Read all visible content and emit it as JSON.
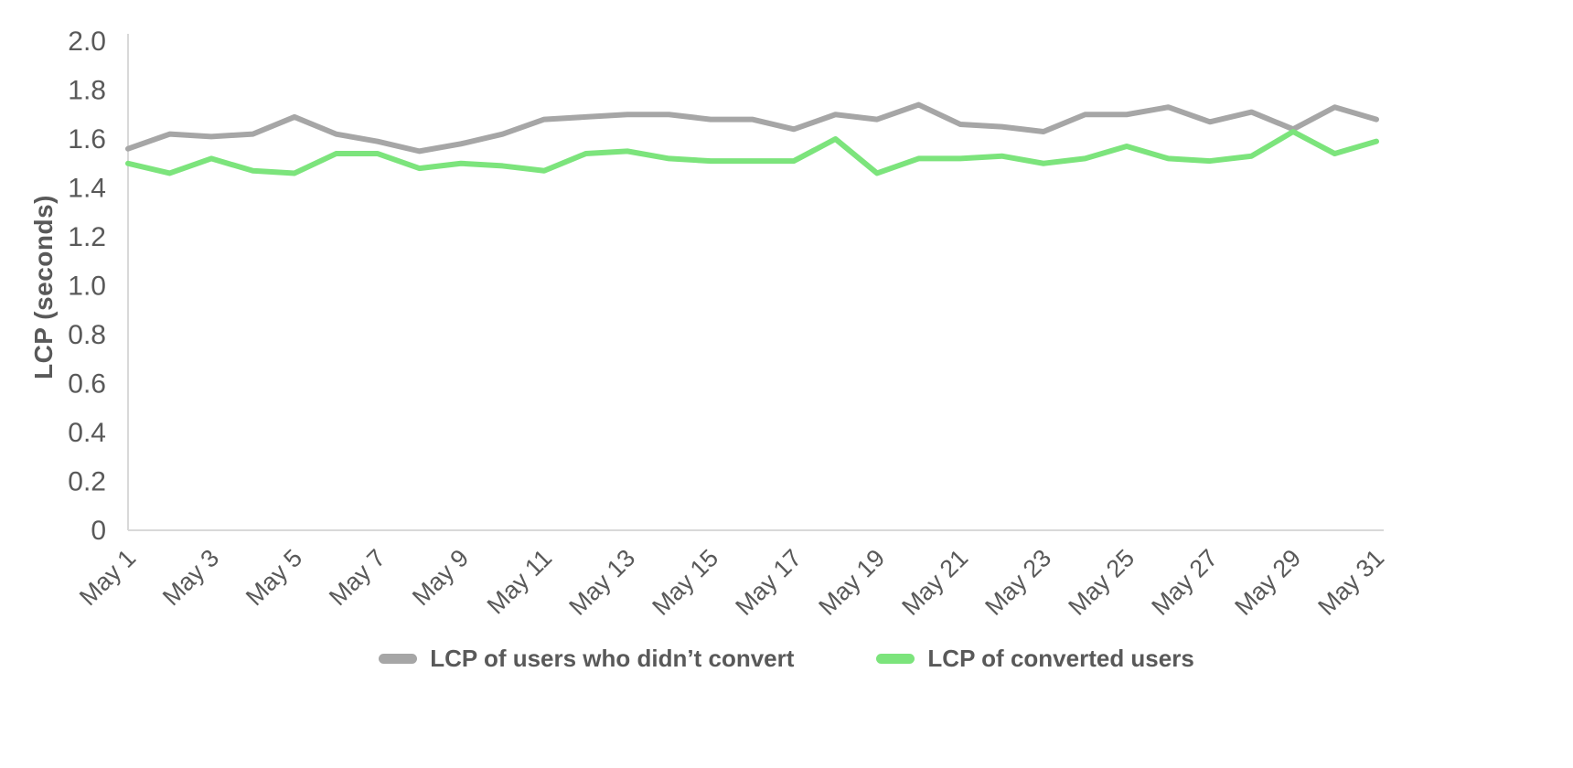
{
  "chart_data": {
    "type": "line",
    "title": "",
    "ylabel": "LCP (seconds)",
    "xlabel": "",
    "ylim": [
      0,
      2.0
    ],
    "grid": false,
    "legend_position": "bottom",
    "text_color": "#595959",
    "axis_color": "#D9D9D9",
    "x": [
      "May 1",
      "May 2",
      "May 3",
      "May 4",
      "May 5",
      "May 6",
      "May 7",
      "May 8",
      "May 9",
      "May 10",
      "May 11",
      "May 12",
      "May 13",
      "May 14",
      "May 15",
      "May 16",
      "May 17",
      "May 18",
      "May 19",
      "May 20",
      "May 21",
      "May 22",
      "May 23",
      "May 24",
      "May 25",
      "May 26",
      "May 27",
      "May 28",
      "May 29",
      "May 30",
      "May 31"
    ],
    "xtick_labels": [
      "May 1",
      "May 3",
      "May 5",
      "May 7",
      "May 9",
      "May 11",
      "May 13",
      "May 15",
      "May 17",
      "May 19",
      "May 21",
      "May 23",
      "May 25",
      "May 27",
      "May 29",
      "May 31"
    ],
    "ytick_labels": [
      "0",
      "0.2",
      "0.4",
      "0.6",
      "0.8",
      "1.0",
      "1.2",
      "1.4",
      "1.6",
      "1.8",
      "2.0"
    ],
    "series": [
      {
        "name": "LCP of users who didn’t convert",
        "color": "#A6A6A6",
        "values": [
          1.56,
          1.62,
          1.61,
          1.62,
          1.69,
          1.62,
          1.59,
          1.55,
          1.58,
          1.62,
          1.68,
          1.69,
          1.7,
          1.7,
          1.68,
          1.68,
          1.64,
          1.7,
          1.68,
          1.74,
          1.66,
          1.65,
          1.63,
          1.7,
          1.7,
          1.73,
          1.67,
          1.71,
          1.64,
          1.73,
          1.68
        ]
      },
      {
        "name": "LCP of converted users",
        "color": "#7CE47C",
        "values": [
          1.5,
          1.46,
          1.52,
          1.47,
          1.46,
          1.54,
          1.54,
          1.48,
          1.5,
          1.49,
          1.47,
          1.54,
          1.55,
          1.52,
          1.51,
          1.51,
          1.51,
          1.6,
          1.46,
          1.52,
          1.52,
          1.53,
          1.5,
          1.52,
          1.57,
          1.52,
          1.51,
          1.53,
          1.63,
          1.54,
          1.59
        ]
      }
    ]
  }
}
